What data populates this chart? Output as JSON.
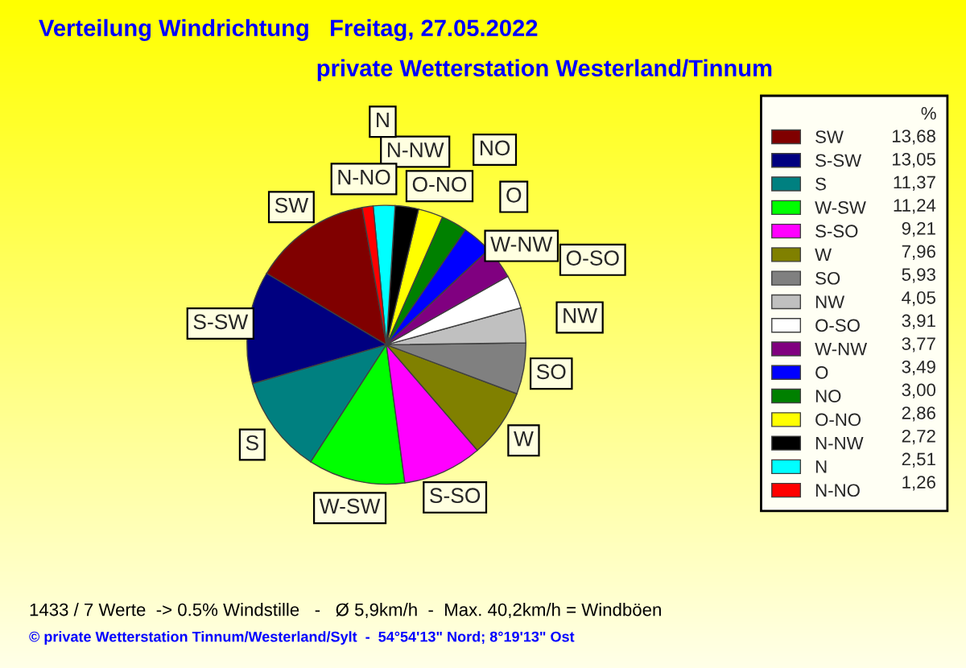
{
  "chart_data": {
    "type": "pie",
    "title": "Verteilung Windrichtung   Freitag, 27.05.2022",
    "subtitle": "private Wetterstation Westerland/Tinnum",
    "categories": [
      "SW",
      "S-SW",
      "S",
      "W-SW",
      "S-SO",
      "W",
      "SO",
      "NW",
      "O-SO",
      "W-NW",
      "O",
      "NO",
      "O-NO",
      "N-NW",
      "N",
      "N-NO"
    ],
    "values": [
      13.68,
      13.05,
      11.37,
      11.24,
      9.21,
      7.96,
      5.93,
      4.05,
      3.91,
      3.77,
      3.49,
      3.0,
      2.86,
      2.72,
      2.51,
      1.26
    ],
    "value_labels": [
      "13,68",
      "13,05",
      "11,37",
      "11,24",
      "9,21",
      "7,96",
      "5,93",
      "4,05",
      "3,91",
      "3,77",
      "3,49",
      "3,00",
      "2,86",
      "2,72",
      "2,51",
      "1,26"
    ],
    "colors": [
      "#800000",
      "#000080",
      "#008080",
      "#00ff00",
      "#ff00ff",
      "#808000",
      "#808080",
      "#c0c0c0",
      "#ffffff",
      "#800080",
      "#0000ff",
      "#008000",
      "#ffff00",
      "#000000",
      "#00ffff",
      "#ff0000"
    ],
    "legend": "right",
    "legend_title": "%",
    "annotations": [
      "1433 / 7 Werte  -> 0.5% Windstille   -   Ø 5,9km/h  -  Max. 40,2km/h = Windböen",
      "© private Wetterstation Tinnum/Westerland/Sylt  -  54°54'13\" Nord; 8°19'13\" Ost"
    ]
  }
}
